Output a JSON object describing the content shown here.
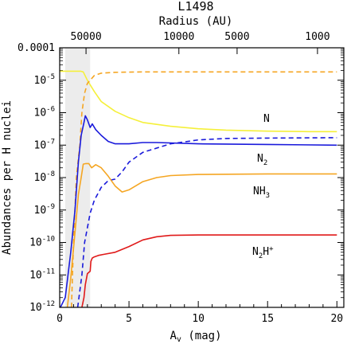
{
  "chart_data": {
    "type": "line",
    "title": "L1498",
    "top_axis_label": "Radius (AU)",
    "top_axis_ticks": [
      {
        "label": "50000",
        "av": 1.9
      },
      {
        "label": "10000",
        "av": 8.6
      },
      {
        "label": "5000",
        "av": 12.8
      },
      {
        "label": "1000",
        "av": 18.6
      }
    ],
    "xlabel": "Av (mag)",
    "ylabel": "Abundances per H nuclei",
    "xlim": [
      0,
      20.5
    ],
    "ylim": [
      1e-12,
      0.0001
    ],
    "yscale": "log",
    "x_ticks": [
      "0",
      "5",
      "10",
      "15",
      "20"
    ],
    "y_ticks": [
      "10-12",
      "10-11",
      "10-10",
      "10-9",
      "10-8",
      "10-7",
      "10-6",
      "10-5",
      "0.0001"
    ],
    "shaded_region": {
      "x_range": [
        0.4,
        2.2
      ],
      "color": "#ececec"
    },
    "series": [
      {
        "label_parts": [
          "N"
        ],
        "color": "#f5f03a",
        "style": "solid",
        "points": [
          [
            0,
            1.9e-05
          ],
          [
            1.5,
            1.9e-05
          ],
          [
            1.7,
            1.8e-05
          ],
          [
            2.0,
            1e-05
          ],
          [
            2.5,
            4.5e-06
          ],
          [
            3.0,
            2.2e-06
          ],
          [
            4.0,
            1.1e-06
          ],
          [
            5.0,
            7e-07
          ],
          [
            6.0,
            5e-07
          ],
          [
            8.0,
            3.8e-07
          ],
          [
            10.0,
            3.2e-07
          ],
          [
            12.0,
            2.9e-07
          ],
          [
            15.0,
            2.7e-07
          ],
          [
            18.0,
            2.6e-07
          ],
          [
            20.0,
            2.6e-07
          ]
        ]
      },
      {
        "label_parts": [],
        "color": "#f5a623",
        "style": "dashed",
        "points": [
          [
            0.85,
            1e-12
          ],
          [
            1.0,
            1e-10
          ],
          [
            1.2,
            1e-08
          ],
          [
            1.45,
            1e-07
          ],
          [
            1.6,
            1e-06
          ],
          [
            1.8,
            4e-06
          ],
          [
            2.0,
            8e-06
          ],
          [
            2.5,
            1.4e-05
          ],
          [
            3.0,
            1.65e-05
          ],
          [
            4.0,
            1.75e-05
          ],
          [
            6.0,
            1.8e-05
          ],
          [
            10.0,
            1.8e-05
          ],
          [
            15.0,
            1.8e-05
          ],
          [
            20.0,
            1.8e-05
          ]
        ]
      },
      {
        "label_parts": [
          "N",
          "2"
        ],
        "color": "#1a1adb",
        "style": "solid",
        "points": [
          [
            0.05,
            1e-12
          ],
          [
            0.4,
            2e-12
          ],
          [
            0.8,
            5e-11
          ],
          [
            1.1,
            1e-09
          ],
          [
            1.35,
            3e-08
          ],
          [
            1.55,
            2e-07
          ],
          [
            1.75,
            5e-07
          ],
          [
            1.85,
            8e-07
          ],
          [
            2.0,
            6e-07
          ],
          [
            2.2,
            3.5e-07
          ],
          [
            2.35,
            4.5e-07
          ],
          [
            2.6,
            3e-07
          ],
          [
            3.0,
            2e-07
          ],
          [
            3.5,
            1.3e-07
          ],
          [
            4.0,
            1.1e-07
          ],
          [
            5.0,
            1.1e-07
          ],
          [
            6.0,
            1.2e-07
          ],
          [
            7.0,
            1.2e-07
          ],
          [
            10.0,
            1.1e-07
          ],
          [
            15.0,
            1.05e-07
          ],
          [
            20.0,
            1e-07
          ]
        ]
      },
      {
        "label_parts": [],
        "color": "#1a1adb",
        "style": "dashed",
        "points": [
          [
            1.3,
            1e-12
          ],
          [
            1.6,
            1e-11
          ],
          [
            1.8,
            1e-10
          ],
          [
            2.2,
            8e-10
          ],
          [
            2.5,
            2e-09
          ],
          [
            3.0,
            5e-09
          ],
          [
            3.5,
            8e-09
          ],
          [
            4.0,
            9e-09
          ],
          [
            4.5,
            1.5e-08
          ],
          [
            5.0,
            3e-08
          ],
          [
            6.0,
            6e-08
          ],
          [
            8.0,
            1.1e-07
          ],
          [
            10.0,
            1.45e-07
          ],
          [
            12.0,
            1.6e-07
          ],
          [
            15.0,
            1.65e-07
          ],
          [
            20.0,
            1.7e-07
          ]
        ]
      },
      {
        "label_parts": [
          "NH",
          "3"
        ],
        "color": "#f5a623",
        "style": "solid",
        "points": [
          [
            0.55,
            1e-12
          ],
          [
            0.8,
            8e-12
          ],
          [
            1.1,
            2e-10
          ],
          [
            1.35,
            3e-09
          ],
          [
            1.55,
            1e-08
          ],
          [
            1.7,
            2.6e-08
          ],
          [
            1.9,
            2.7e-08
          ],
          [
            2.1,
            2.7e-08
          ],
          [
            2.3,
            2e-08
          ],
          [
            2.6,
            2.5e-08
          ],
          [
            3.0,
            2e-08
          ],
          [
            3.5,
            1.1e-08
          ],
          [
            4.0,
            5.5e-09
          ],
          [
            4.5,
            3.6e-09
          ],
          [
            5.0,
            4.2e-09
          ],
          [
            6.0,
            7.5e-09
          ],
          [
            7.0,
            1e-08
          ],
          [
            8.0,
            1.15e-08
          ],
          [
            10.0,
            1.25e-08
          ],
          [
            15.0,
            1.3e-08
          ],
          [
            20.0,
            1.3e-08
          ]
        ]
      },
      {
        "label_parts": [
          "N",
          "2",
          "H",
          "+"
        ],
        "color": "#e01a1a",
        "style": "solid",
        "points": [
          [
            1.6,
            1e-12
          ],
          [
            1.75,
            2e-12
          ],
          [
            1.85,
            5e-12
          ],
          [
            2.0,
            1.1e-11
          ],
          [
            2.2,
            1.3e-11
          ],
          [
            2.25,
            2.6e-11
          ],
          [
            2.35,
            3.3e-11
          ],
          [
            2.5,
            3.6e-11
          ],
          [
            2.8,
            4e-11
          ],
          [
            3.2,
            4.3e-11
          ],
          [
            4.0,
            5e-11
          ],
          [
            5.0,
            7.5e-11
          ],
          [
            6.0,
            1.2e-10
          ],
          [
            7.0,
            1.5e-10
          ],
          [
            8.0,
            1.65e-10
          ],
          [
            10.0,
            1.7e-10
          ],
          [
            15.0,
            1.7e-10
          ],
          [
            20.0,
            1.7e-10
          ]
        ]
      }
    ]
  }
}
